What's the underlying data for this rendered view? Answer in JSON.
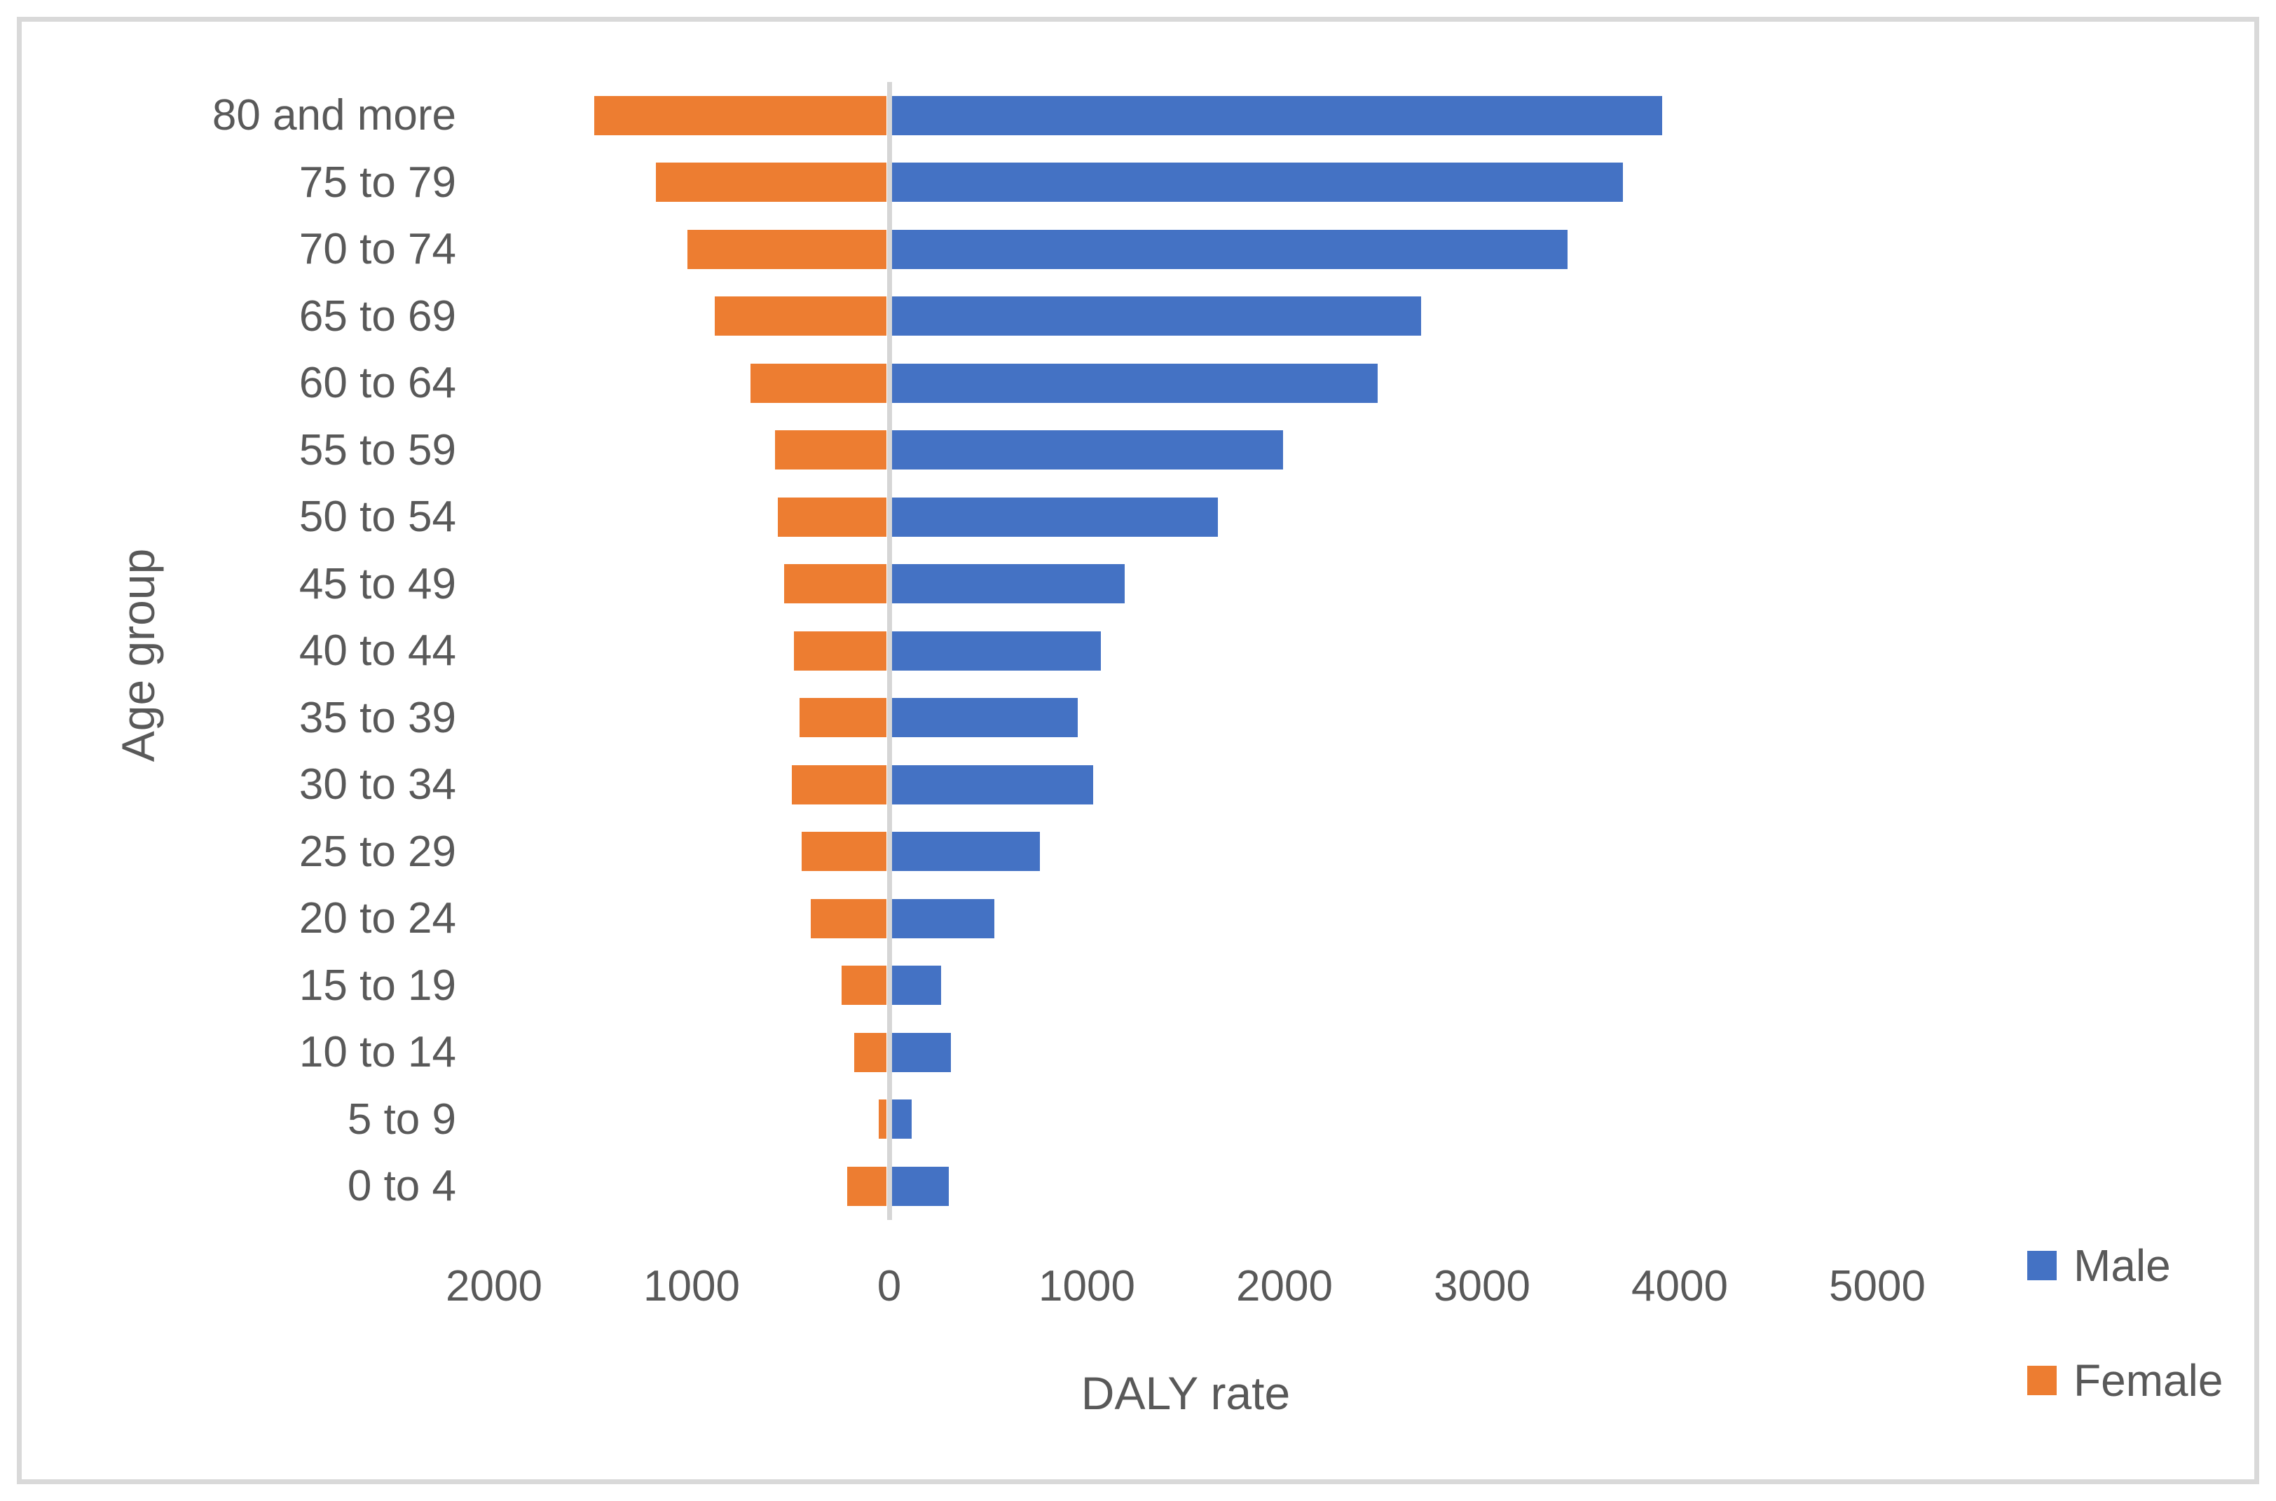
{
  "chart_data": {
    "type": "bar",
    "subtype": "diverging-horizontal-pyramid",
    "title": "",
    "xlabel": "DALY rate",
    "ylabel": "Age group",
    "categories": [
      "80 and more",
      "75 to 79",
      "70 to 74",
      "65 to 69",
      "60 to 64",
      "55 to 59",
      "50 to 54",
      "45 to 49",
      "40 to 44",
      "35 to 39",
      "30 to 34",
      "25 to 29",
      "20 to 24",
      "15 to 19",
      "10 to 14",
      "5 to 9",
      "0 to 4"
    ],
    "series": [
      {
        "name": "Male",
        "side": "right",
        "color": "#4472C4",
        "values": [
          3900,
          3700,
          3420,
          2680,
          2460,
          1980,
          1650,
          1180,
          1060,
          940,
          1020,
          750,
          520,
          250,
          300,
          100,
          290
        ]
      },
      {
        "name": "Female",
        "side": "left",
        "color": "#ED7D31",
        "values": [
          1480,
          1170,
          1010,
          870,
          690,
          565,
          550,
          520,
          470,
          440,
          480,
          430,
          385,
          230,
          165,
          40,
          200
        ]
      }
    ],
    "x_axis": {
      "min": -2000,
      "max": 5000,
      "tick_interval": 1000,
      "ticks": [
        -2000,
        -1000,
        0,
        1000,
        2000,
        3000,
        4000,
        5000
      ],
      "tick_labels": [
        "2000",
        "1000",
        "0",
        "1000",
        "2000",
        "3000",
        "4000",
        "5000"
      ],
      "labels_show_absolute_values": true
    },
    "grid": "off",
    "legend": {
      "position": "bottom-right",
      "entries": [
        {
          "label": "Male",
          "color": "#4472C4"
        },
        {
          "label": "Female",
          "color": "#ED7D31"
        }
      ]
    }
  },
  "colors": {
    "male_bar": "#4472C4",
    "female_bar": "#ED7D31",
    "axis_line": "#D6D6D6",
    "frame_border": "#D9D9D9",
    "text": "#595959",
    "background": "#FFFFFF"
  }
}
